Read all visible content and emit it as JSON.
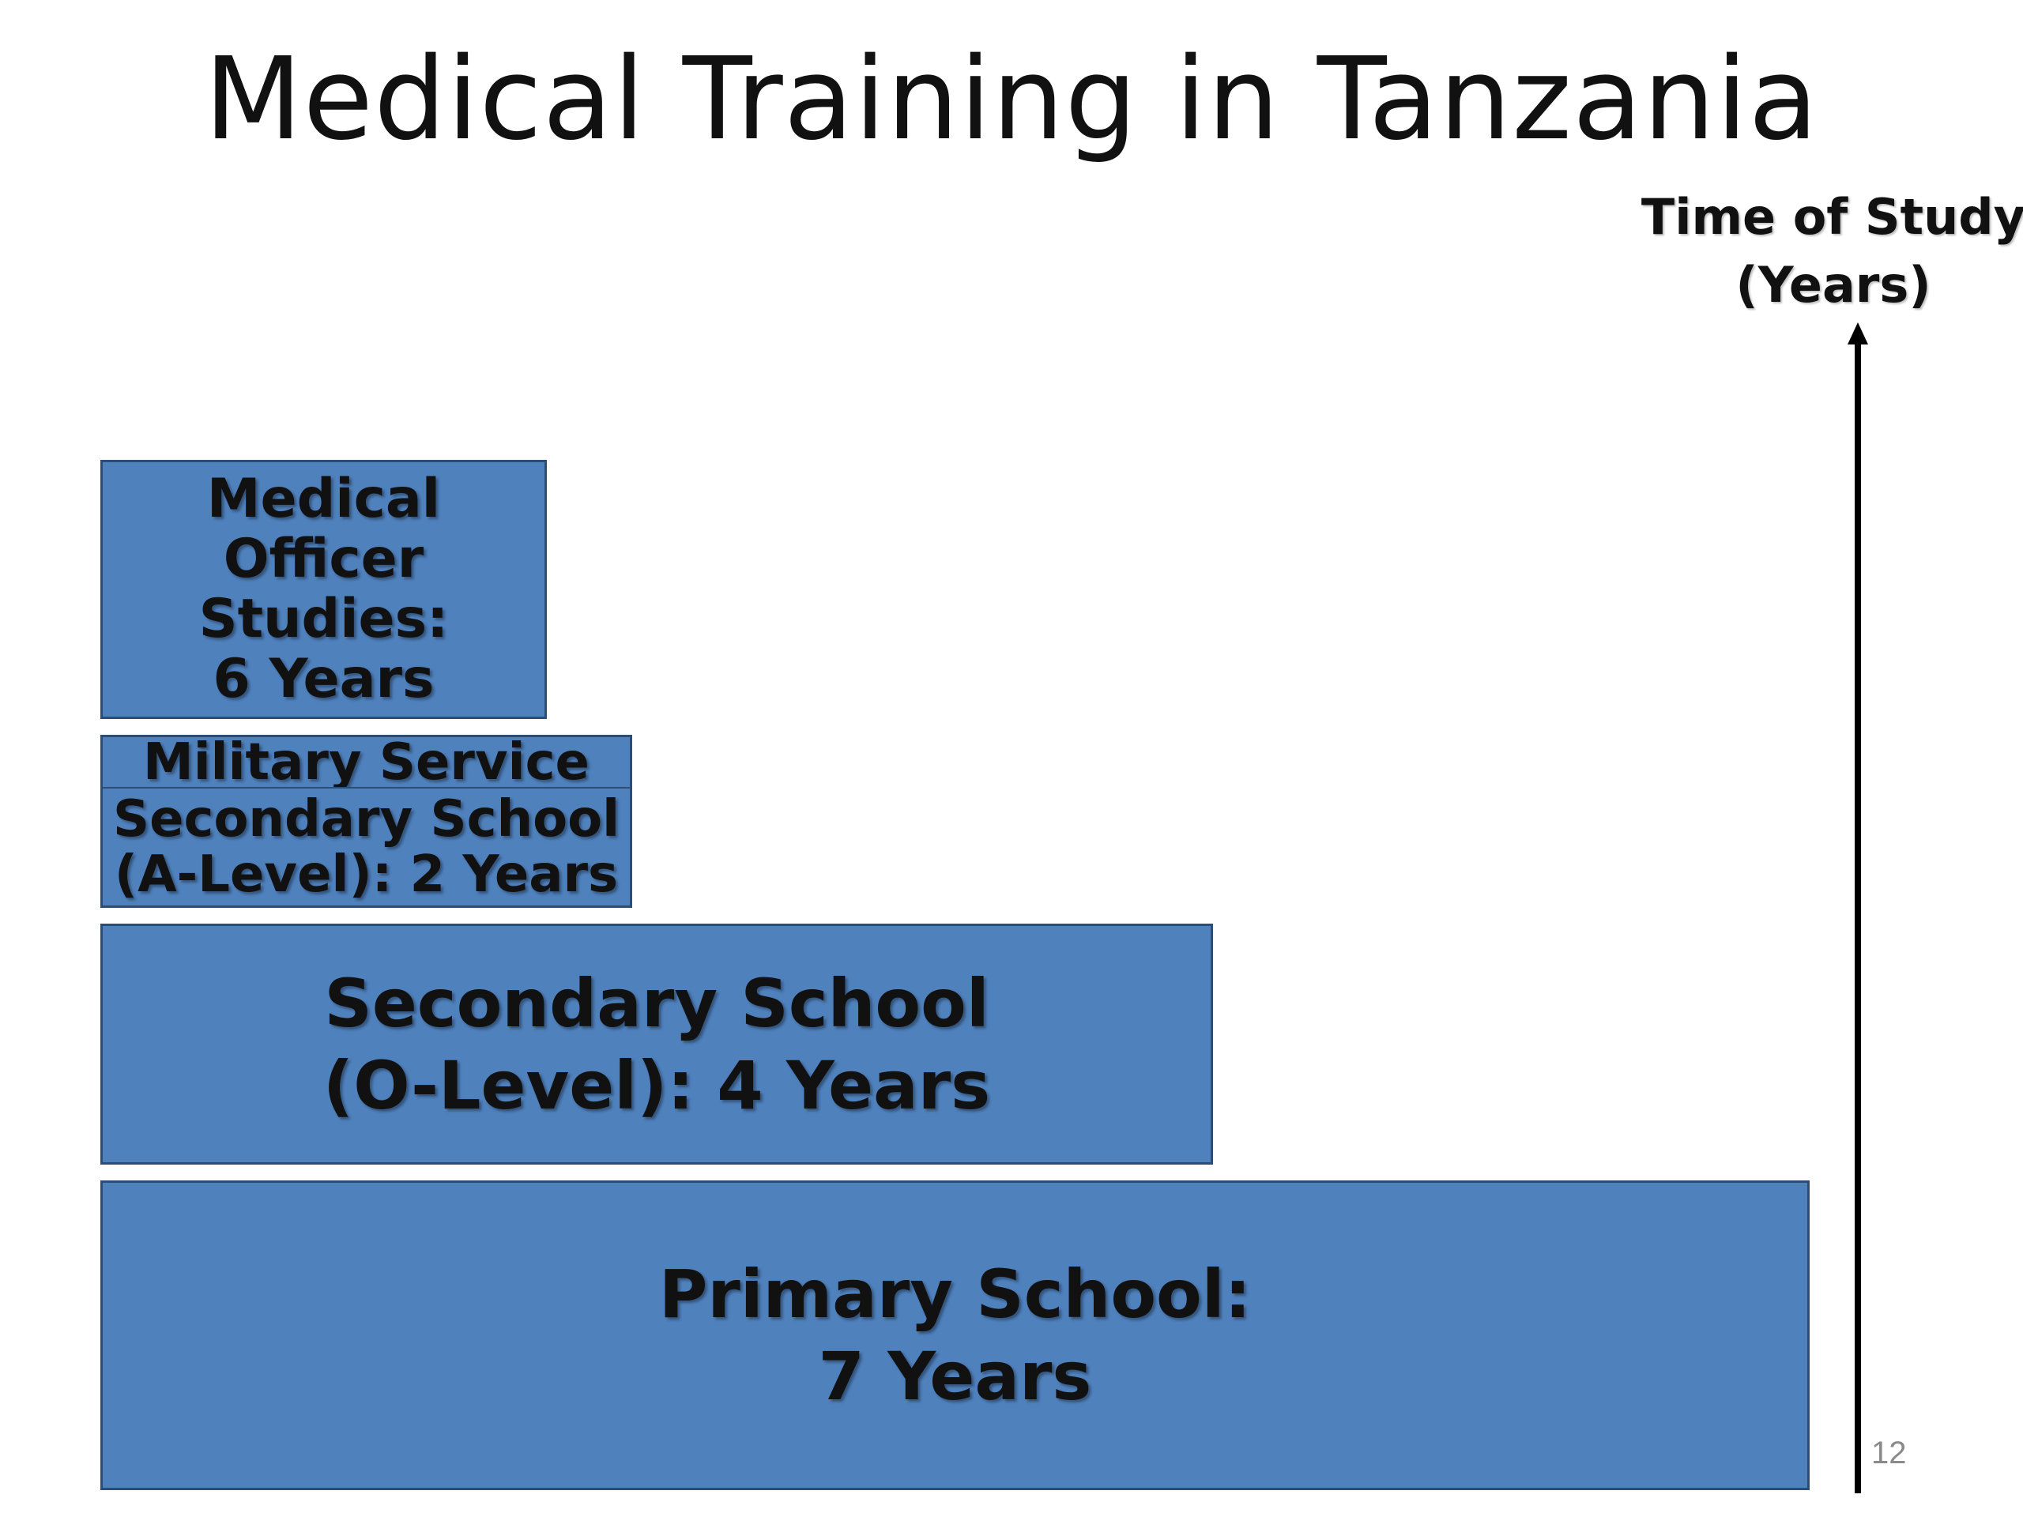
{
  "slide": {
    "title": "Medical Training in Tanzania",
    "page_number": "12"
  },
  "axis": {
    "label": "Time of Study\n(Years)",
    "direction": "up"
  },
  "stages": {
    "primary": {
      "label": "Primary School:\n7 Years",
      "years": 7
    },
    "o_level": {
      "label": "Secondary School\n(O-Level): 4 Years",
      "years": 4
    },
    "military": {
      "label": "Military Service"
    },
    "a_level": {
      "label": "Secondary School\n(A-Level): 2 Years",
      "years": 2
    },
    "medical_officer": {
      "label": "Medical\nOfficer\nStudies:\n6 Years",
      "years": 6
    }
  },
  "colors": {
    "box_fill": "#4f81bd",
    "box_border": "#2c4d75",
    "text": "#111111",
    "page_number": "#8a8a8a"
  }
}
